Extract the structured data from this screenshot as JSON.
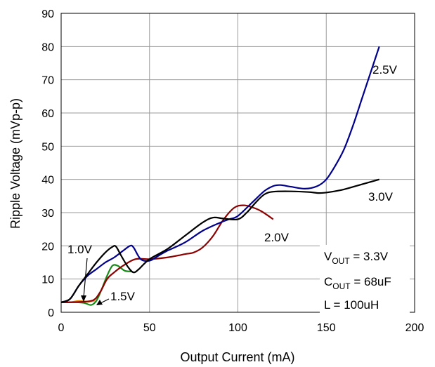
{
  "chart_data": {
    "type": "line",
    "xlabel": "Output Current (mA)",
    "ylabel": "Ripple Voltage (mVp-p)",
    "xlim": [
      0,
      200
    ],
    "ylim": [
      0,
      90
    ],
    "xticks": [
      "0",
      "50",
      "100",
      "150",
      "200"
    ],
    "yticks": [
      "0",
      "10",
      "20",
      "30",
      "40",
      "50",
      "60",
      "70",
      "80",
      "90"
    ],
    "grid": true,
    "series": [
      {
        "name": "1.0V",
        "color": "#f08a00",
        "points": [
          [
            0,
            3
          ],
          [
            5,
            3
          ],
          [
            10,
            3.4
          ],
          [
            15,
            3.2
          ],
          [
            19,
            3.5
          ]
        ]
      },
      {
        "name": "1.5V",
        "color": "#1a8a1a",
        "points": [
          [
            0,
            3
          ],
          [
            8,
            3
          ],
          [
            13,
            2.8
          ],
          [
            17,
            2.2
          ],
          [
            20,
            3.5
          ],
          [
            23,
            7
          ],
          [
            26,
            11
          ],
          [
            29,
            14
          ],
          [
            32,
            14
          ],
          [
            36,
            12.5
          ],
          [
            40,
            12.3
          ]
        ]
      },
      {
        "name": "2.0V",
        "color": "#8b0000",
        "points": [
          [
            0,
            3
          ],
          [
            10,
            3.1
          ],
          [
            18,
            3.6
          ],
          [
            22,
            6
          ],
          [
            26,
            10
          ],
          [
            30,
            12
          ],
          [
            35,
            14
          ],
          [
            42,
            16
          ],
          [
            50,
            16
          ],
          [
            60,
            16.5
          ],
          [
            70,
            17.5
          ],
          [
            75,
            18
          ],
          [
            80,
            19.5
          ],
          [
            86,
            23
          ],
          [
            92,
            28
          ],
          [
            98,
            31.5
          ],
          [
            103,
            32.2
          ],
          [
            107,
            31.8
          ],
          [
            113,
            30.5
          ],
          [
            120,
            28
          ]
        ]
      },
      {
        "name": "2.5V",
        "color": "#00008b",
        "points": [
          [
            0,
            3
          ],
          [
            5,
            4
          ],
          [
            10,
            8
          ],
          [
            15,
            11
          ],
          [
            20,
            13
          ],
          [
            25,
            15
          ],
          [
            30,
            16.5
          ],
          [
            35,
            18.5
          ],
          [
            39,
            20
          ],
          [
            41,
            19.5
          ],
          [
            45,
            16
          ],
          [
            50,
            15.5
          ],
          [
            55,
            17
          ],
          [
            60,
            18.5
          ],
          [
            70,
            21
          ],
          [
            80,
            24.5
          ],
          [
            90,
            27
          ],
          [
            95,
            28
          ],
          [
            100,
            29
          ],
          [
            108,
            33
          ],
          [
            115,
            36.5
          ],
          [
            120,
            38
          ],
          [
            124,
            38.3
          ],
          [
            130,
            37.8
          ],
          [
            138,
            37.2
          ],
          [
            145,
            38
          ],
          [
            150,
            40
          ],
          [
            155,
            44
          ],
          [
            160,
            49
          ],
          [
            165,
            56
          ],
          [
            170,
            64
          ],
          [
            175,
            72
          ],
          [
            180,
            80
          ]
        ]
      },
      {
        "name": "3.0V",
        "color": "#000000",
        "points": [
          [
            0,
            3
          ],
          [
            5,
            4
          ],
          [
            10,
            8
          ],
          [
            15,
            11.5
          ],
          [
            20,
            15
          ],
          [
            25,
            18
          ],
          [
            29,
            19.7
          ],
          [
            31,
            19.8
          ],
          [
            34,
            17
          ],
          [
            38,
            13.5
          ],
          [
            41,
            12
          ],
          [
            44,
            13
          ],
          [
            50,
            16
          ],
          [
            60,
            19
          ],
          [
            70,
            23
          ],
          [
            80,
            27
          ],
          [
            86,
            28.5
          ],
          [
            92,
            28.2
          ],
          [
            100,
            28
          ],
          [
            105,
            30
          ],
          [
            110,
            33
          ],
          [
            115,
            35.5
          ],
          [
            120,
            36.3
          ],
          [
            130,
            36.4
          ],
          [
            140,
            36.2
          ],
          [
            146,
            35.9
          ],
          [
            152,
            36.2
          ],
          [
            160,
            37
          ],
          [
            170,
            38.5
          ],
          [
            180,
            40
          ]
        ]
      }
    ],
    "annotations": {
      "params": [
        "V",
        "OUT",
        " = 3.3V",
        "C",
        "OUT",
        " = 68uF",
        "L = 100uH"
      ]
    }
  }
}
